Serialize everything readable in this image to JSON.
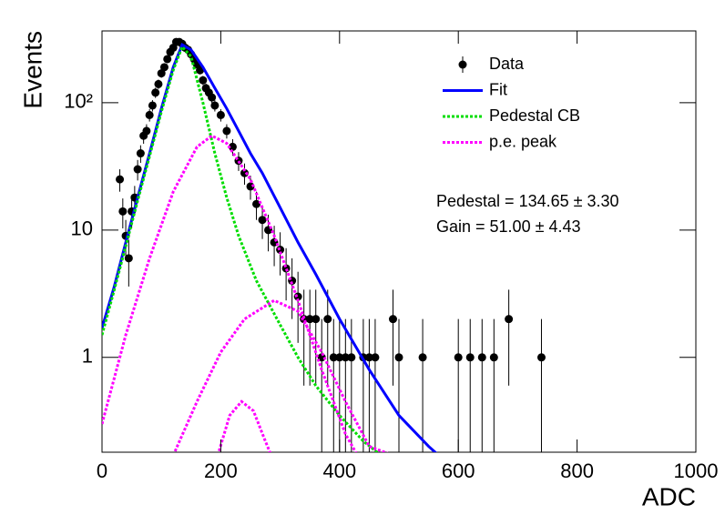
{
  "chart_data": {
    "type": "scatter",
    "x_label": "ADC",
    "y_label": "Events",
    "log_y": true,
    "xlim": [
      0,
      1000
    ],
    "ylim": [
      0.18,
      366
    ],
    "xticks": [
      0,
      200,
      400,
      600,
      800,
      1000
    ],
    "yticks": [
      1,
      10,
      {
        "value": 100,
        "label": "10²"
      }
    ],
    "legend": "top-right",
    "annotations": [
      "Pedestal = 134.65 ± 3.30",
      "Gain = 51.00 ± 4.43"
    ],
    "series": [
      {
        "name": "Data",
        "color": "#000000",
        "x": [
          30,
          35,
          40,
          45,
          50,
          55,
          60,
          65,
          70,
          75,
          80,
          85,
          90,
          95,
          100,
          105,
          110,
          115,
          120,
          125,
          130,
          135,
          140,
          145,
          150,
          155,
          160,
          165,
          170,
          175,
          180,
          185,
          190,
          200,
          210,
          220,
          230,
          240,
          250,
          260,
          270,
          280,
          290,
          300,
          310,
          320,
          330,
          340,
          350,
          360,
          370,
          380,
          390,
          400,
          410,
          420,
          440,
          450,
          460,
          490,
          500,
          540,
          600,
          620,
          640,
          660,
          685,
          740
        ],
        "values": [
          25,
          14,
          9,
          6,
          14,
          18,
          30,
          40,
          55,
          60,
          80,
          95,
          120,
          140,
          170,
          190,
          220,
          250,
          270,
          300,
          300,
          290,
          270,
          260,
          240,
          220,
          200,
          180,
          150,
          130,
          120,
          110,
          95,
          80,
          60,
          45,
          35,
          28,
          22,
          16,
          12,
          10,
          8,
          7,
          5,
          4,
          3,
          2,
          2,
          2,
          1,
          2,
          1,
          1,
          1,
          1,
          1,
          1,
          1,
          2,
          1,
          1,
          1,
          1,
          1,
          1,
          2,
          1
        ],
        "errors": [
          5,
          3.7,
          3,
          2.4,
          3.7,
          4.2,
          5.5,
          6.3,
          7.4,
          7.7,
          8.9,
          9.7,
          11,
          11.8,
          13,
          13.8,
          14.8,
          15.8,
          16.4,
          17.3,
          17.3,
          17,
          16.4,
          16.1,
          15.5,
          14.8,
          14.1,
          13.4,
          12.2,
          11.4,
          11,
          10.5,
          9.7,
          8.9,
          7.7,
          6.7,
          5.9,
          5.3,
          4.7,
          4,
          3.5,
          3.2,
          2.8,
          2.6,
          2.2,
          2,
          1.7,
          1.4,
          1.4,
          1.4,
          1,
          1.4,
          1,
          1,
          1,
          1,
          1,
          1,
          1,
          1.4,
          1,
          1,
          1,
          1,
          1,
          1,
          1.4,
          1
        ]
      },
      {
        "name": "Fit",
        "color": "#0000ff",
        "linestyle": "solid",
        "x": [
          0,
          20,
          40,
          60,
          80,
          100,
          120,
          135,
          150,
          170,
          190,
          210,
          230,
          250,
          270,
          300,
          330,
          360,
          400,
          450,
          500,
          550,
          580
        ],
        "values": [
          1.7,
          3.5,
          8,
          18,
          40,
          90,
          190,
          285,
          260,
          190,
          130,
          90,
          60,
          40,
          28,
          15,
          8,
          4.5,
          2,
          0.8,
          0.35,
          0.2,
          0.15
        ]
      },
      {
        "name": "Pedestal CB",
        "color": "#00dd00",
        "linestyle": "dotted",
        "x": [
          0,
          20,
          40,
          60,
          80,
          100,
          120,
          135,
          150,
          170,
          190,
          210,
          230,
          260,
          300,
          330,
          360,
          400,
          440,
          470
        ],
        "values": [
          1.5,
          3.3,
          7.5,
          17,
          38,
          85,
          180,
          275,
          230,
          100,
          40,
          18,
          9,
          4,
          1.8,
          1,
          0.6,
          0.35,
          0.22,
          0.17
        ]
      },
      {
        "name": "p.e. peak",
        "color": "#ff00ff",
        "linestyle": "dotted",
        "x": [
          0,
          40,
          80,
          120,
          160,
          185,
          210,
          250,
          290,
          330,
          370,
          410,
          430,
          null,
          120,
          160,
          200,
          240,
          290,
          330,
          370,
          410,
          450,
          490,
          null,
          195,
          215,
          235,
          255,
          275,
          285
        ],
        "values": [
          0.3,
          1.5,
          6,
          20,
          45,
          55,
          48,
          25,
          9,
          2.8,
          0.8,
          0.25,
          0.17,
          null,
          0.17,
          0.45,
          1.1,
          2,
          2.8,
          2.3,
          1.1,
          0.45,
          0.2,
          0.17,
          null,
          0.17,
          0.35,
          0.45,
          0.38,
          0.22,
          0.17
        ]
      }
    ]
  }
}
